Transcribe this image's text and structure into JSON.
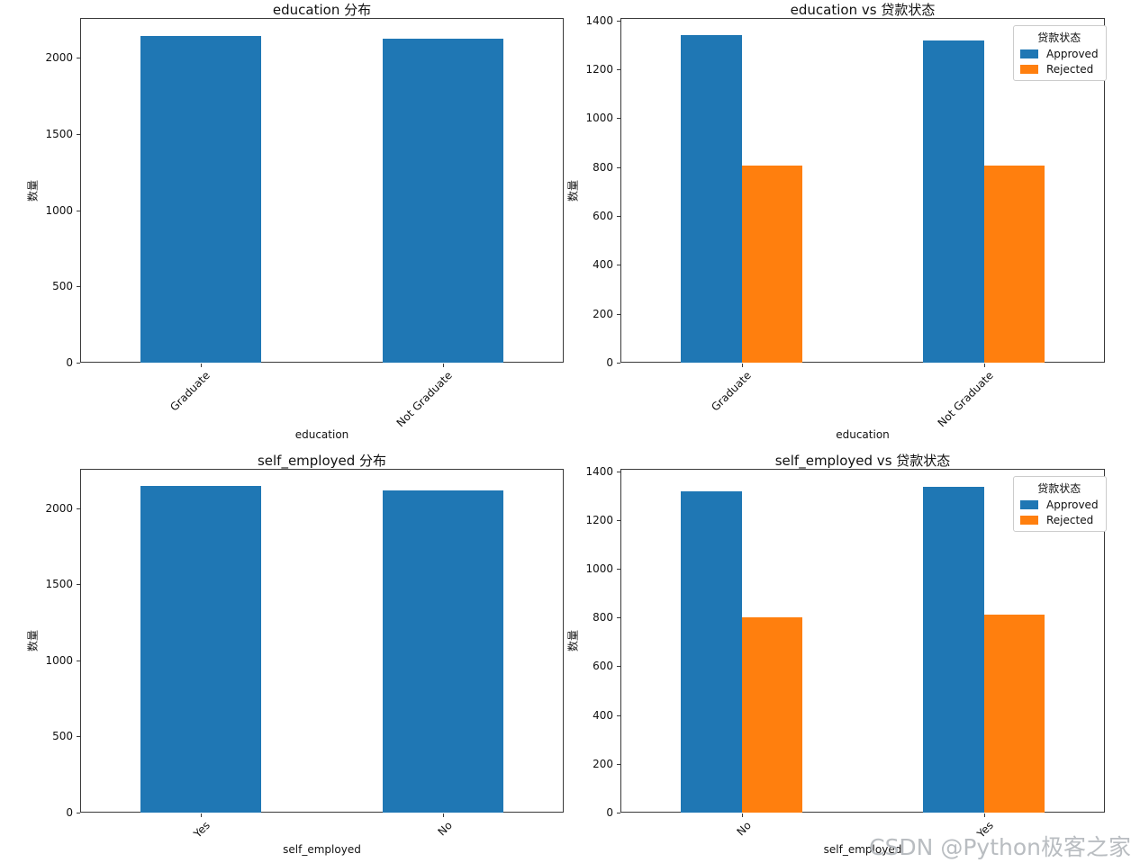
{
  "watermark": {
    "text": "CSDN @Python极客之家",
    "color": "#b9bdc1"
  },
  "colors": {
    "approved": "#1f77b4",
    "rejected": "#ff7f0e",
    "spine": "#3a3a3a"
  },
  "chart_data": [
    {
      "type": "bar",
      "title": "education 分布",
      "xlabel": "education",
      "ylabel": "数量",
      "categories": [
        "Graduate",
        "Not Graduate"
      ],
      "values": [
        2144,
        2125
      ],
      "bar_color": "#1f77b4",
      "yticks": [
        0,
        500,
        1000,
        1500,
        2000
      ],
      "ylim": [
        0,
        2260
      ],
      "grid": false,
      "legend": null
    },
    {
      "type": "bar",
      "title": "education vs 贷款状态",
      "xlabel": "education",
      "ylabel": "数量",
      "categories": [
        "Graduate",
        "Not Graduate"
      ],
      "series": [
        {
          "name": "Approved",
          "color": "#1f77b4",
          "values": [
            1339,
            1317
          ]
        },
        {
          "name": "Rejected",
          "color": "#ff7f0e",
          "values": [
            805,
            808
          ]
        }
      ],
      "yticks": [
        0,
        200,
        400,
        600,
        800,
        1000,
        1200,
        1400
      ],
      "ylim": [
        0,
        1410
      ],
      "grid": false,
      "legend": {
        "title": "贷款状态",
        "entries": [
          "Approved",
          "Rejected"
        ],
        "position": "upper right"
      }
    },
    {
      "type": "bar",
      "title": "self_employed 分布",
      "xlabel": "self_employed",
      "ylabel": "数量",
      "categories": [
        "Yes",
        "No"
      ],
      "values": [
        2150,
        2119
      ],
      "bar_color": "#1f77b4",
      "yticks": [
        0,
        500,
        1000,
        1500,
        2000
      ],
      "ylim": [
        0,
        2260
      ],
      "grid": false,
      "legend": null
    },
    {
      "type": "bar",
      "title": "self_employed vs 贷款状态",
      "xlabel": "self_employed",
      "ylabel": "数量",
      "categories": [
        "No",
        "Yes"
      ],
      "series": [
        {
          "name": "Approved",
          "color": "#1f77b4",
          "values": [
            1318,
            1338
          ]
        },
        {
          "name": "Rejected",
          "color": "#ff7f0e",
          "values": [
            801,
            812
          ]
        }
      ],
      "yticks": [
        0,
        200,
        400,
        600,
        800,
        1000,
        1200,
        1400
      ],
      "ylim": [
        0,
        1410
      ],
      "grid": false,
      "legend": {
        "title": "贷款状态",
        "entries": [
          "Approved",
          "Rejected"
        ],
        "position": "upper right"
      }
    }
  ]
}
